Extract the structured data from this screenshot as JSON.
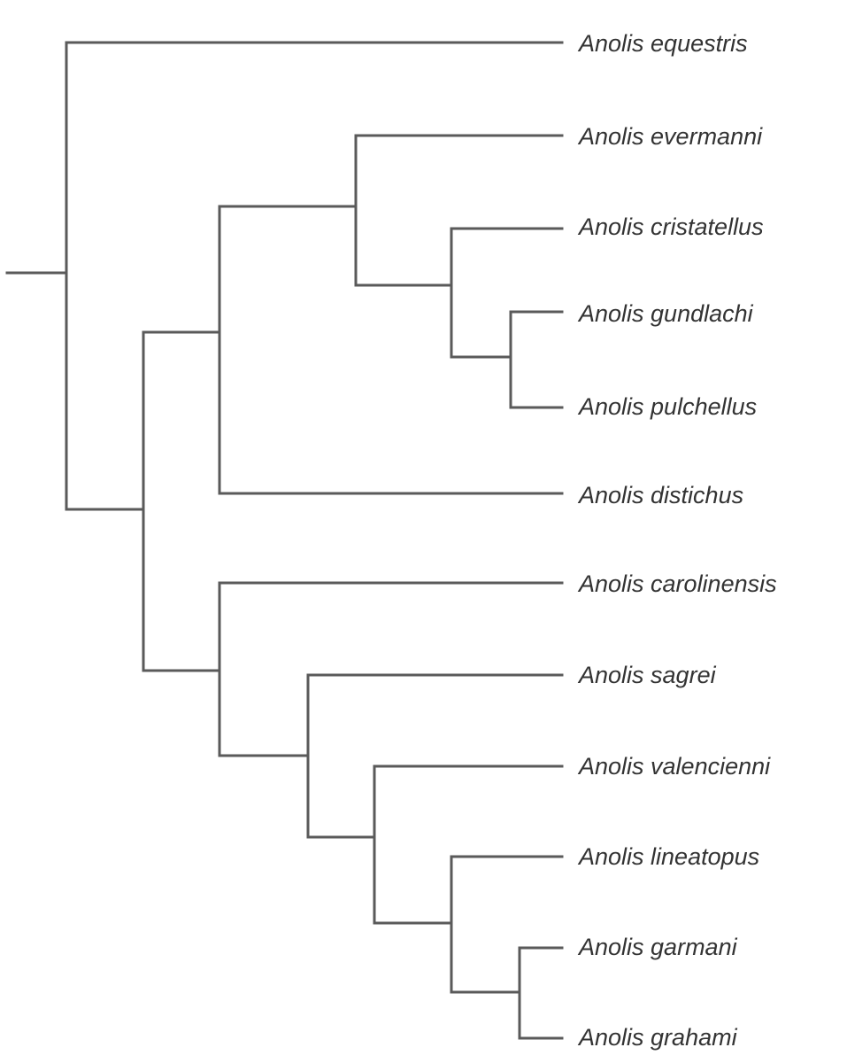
{
  "diagram": {
    "type": "phylogenetic-tree",
    "line_color": "#5a5a5a",
    "label_color": "#333333",
    "tips": [
      "Anolis equestris",
      "Anolis evermanni",
      "Anolis cristatellus",
      "Anolis gundlachi",
      "Anolis pulchellus",
      "Anolis distichus",
      "Anolis carolinensis",
      "Anolis sagrei",
      "Anolis valencienni",
      "Anolis lineatopus",
      "Anolis garmani",
      "Anolis grahami"
    ],
    "newick": "(Anolis equestris,(((Anolis evermanni,(Anolis cristatellus,(Anolis gundlachi,Anolis pulchellus))),Anolis distichus),(Anolis carolinensis,(Anolis sagrei,(Anolis valencienni,(Anolis lineatopus,(Anolis garmani,Anolis grahami)))))));"
  }
}
